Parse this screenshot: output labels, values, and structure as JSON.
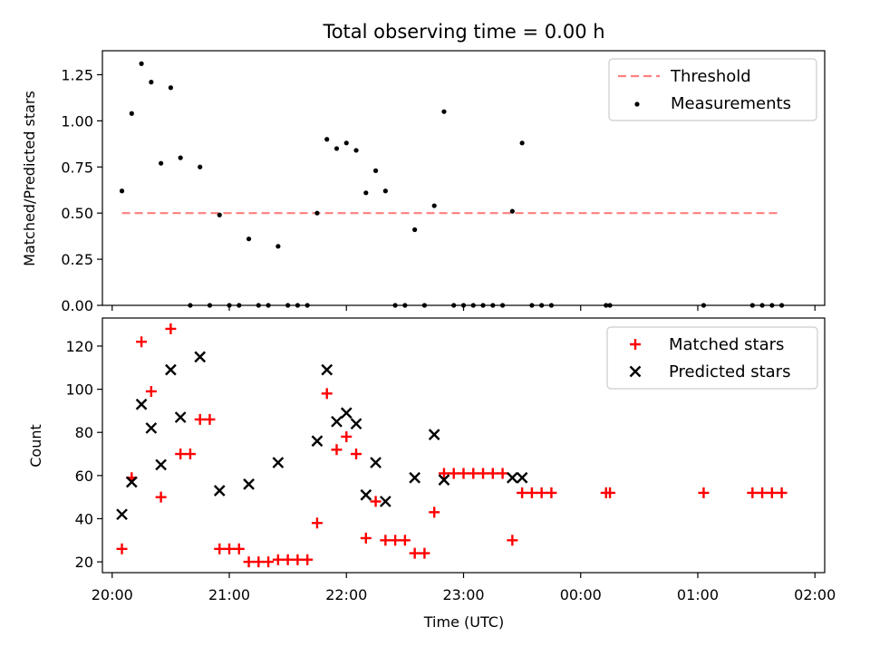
{
  "title": "Total observing time = 0.00 h",
  "chart_data": [
    {
      "type": "scatter",
      "ylabel": "Matched/Predicted stars",
      "xlabel": "",
      "xlim": [
        "19:55",
        "26:05"
      ],
      "ylim": [
        0.0,
        1.38
      ],
      "yticks": [
        "0.00",
        "0.25",
        "0.50",
        "0.75",
        "1.00",
        "1.25"
      ],
      "legend": {
        "placement": "upper right",
        "entries": [
          "Threshold",
          "Measurements"
        ]
      },
      "threshold": {
        "name": "Threshold",
        "value": 0.5,
        "x": [
          "20:05",
          "25:43"
        ],
        "color": "#ff7f7f",
        "style": "dashed"
      },
      "series": [
        {
          "name": "Measurements",
          "marker": "dot",
          "color": "#000000",
          "x": [
            "20:05",
            "20:10",
            "20:15",
            "20:20",
            "20:25",
            "20:30",
            "20:35",
            "20:40",
            "20:45",
            "20:50",
            "20:55",
            "21:00",
            "21:05",
            "21:10",
            "21:15",
            "21:20",
            "21:25",
            "21:30",
            "21:35",
            "21:40",
            "21:45",
            "21:50",
            "21:55",
            "22:00",
            "22:05",
            "22:10",
            "22:15",
            "22:20",
            "22:25",
            "22:30",
            "22:35",
            "22:40",
            "22:45",
            "22:50",
            "22:55",
            "23:00",
            "23:05",
            "23:10",
            "23:15",
            "23:20",
            "23:25",
            "23:30",
            "23:35",
            "23:40",
            "23:45",
            "24:13",
            "24:15",
            "25:03",
            "25:28",
            "25:33",
            "25:38",
            "25:43"
          ],
          "y": [
            0.62,
            1.04,
            1.31,
            1.21,
            0.77,
            1.18,
            0.8,
            0.0,
            0.75,
            0.0,
            0.49,
            0.0,
            0.0,
            0.36,
            0.0,
            0.0,
            0.32,
            0.0,
            0.0,
            0.0,
            0.5,
            0.9,
            0.85,
            0.88,
            0.84,
            0.61,
            0.73,
            0.62,
            0.0,
            0.0,
            0.41,
            0.0,
            0.54,
            1.05,
            0.0,
            0.0,
            0.0,
            0.0,
            0.0,
            0.0,
            0.51,
            0.88,
            0.0,
            0.0,
            0.0,
            0.0,
            0.0,
            0.0,
            0.0,
            0.0,
            0.0,
            0.0
          ]
        }
      ]
    },
    {
      "type": "scatter",
      "ylabel": "Count",
      "xlabel": "Time (UTC)",
      "xlim": [
        "19:55",
        "26:05"
      ],
      "ylim": [
        15,
        133
      ],
      "yticks": [
        "20",
        "40",
        "60",
        "80",
        "100",
        "120"
      ],
      "xticks": [
        "20:00",
        "21:00",
        "22:00",
        "23:00",
        "00:00",
        "01:00",
        "02:00"
      ],
      "legend": {
        "placement": "upper right",
        "entries": [
          "Matched stars",
          "Predicted stars"
        ]
      },
      "series": [
        {
          "name": "Matched stars",
          "marker": "plus",
          "color": "#ff0000",
          "x": [
            "20:05",
            "20:10",
            "20:15",
            "20:20",
            "20:25",
            "20:30",
            "20:35",
            "20:40",
            "20:45",
            "20:50",
            "20:55",
            "21:00",
            "21:05",
            "21:10",
            "21:15",
            "21:20",
            "21:25",
            "21:30",
            "21:35",
            "21:40",
            "21:45",
            "21:50",
            "21:55",
            "22:00",
            "22:05",
            "22:10",
            "22:15",
            "22:20",
            "22:25",
            "22:30",
            "22:35",
            "22:40",
            "22:45",
            "22:50",
            "22:55",
            "23:00",
            "23:05",
            "23:10",
            "23:15",
            "23:20",
            "23:25",
            "23:30",
            "23:35",
            "23:40",
            "23:45",
            "24:13",
            "24:15",
            "25:03",
            "25:28",
            "25:33",
            "25:38",
            "25:43"
          ],
          "y": [
            26,
            59,
            122,
            99,
            50,
            128,
            70,
            70,
            86,
            86,
            26,
            26,
            26,
            20,
            20,
            20,
            21,
            21,
            21,
            21,
            38,
            98,
            72,
            78,
            70,
            31,
            48,
            30,
            30,
            30,
            24,
            24,
            43,
            61,
            61,
            61,
            61,
            61,
            61,
            61,
            30,
            52,
            52,
            52,
            52,
            52,
            52,
            52,
            52,
            52,
            52,
            52
          ]
        },
        {
          "name": "Predicted stars",
          "marker": "x",
          "color": "#000000",
          "x": [
            "20:05",
            "20:10",
            "20:15",
            "20:20",
            "20:25",
            "20:30",
            "20:35",
            "20:45",
            "20:55",
            "21:10",
            "21:25",
            "21:45",
            "21:50",
            "21:55",
            "22:00",
            "22:05",
            "22:10",
            "22:15",
            "22:20",
            "22:35",
            "22:45",
            "22:50",
            "23:25",
            "23:30"
          ],
          "y": [
            42,
            57,
            93,
            82,
            65,
            109,
            87,
            115,
            53,
            56,
            66,
            76,
            109,
            85,
            89,
            84,
            51,
            66,
            48,
            59,
            79,
            58,
            59,
            59
          ]
        }
      ]
    }
  ]
}
